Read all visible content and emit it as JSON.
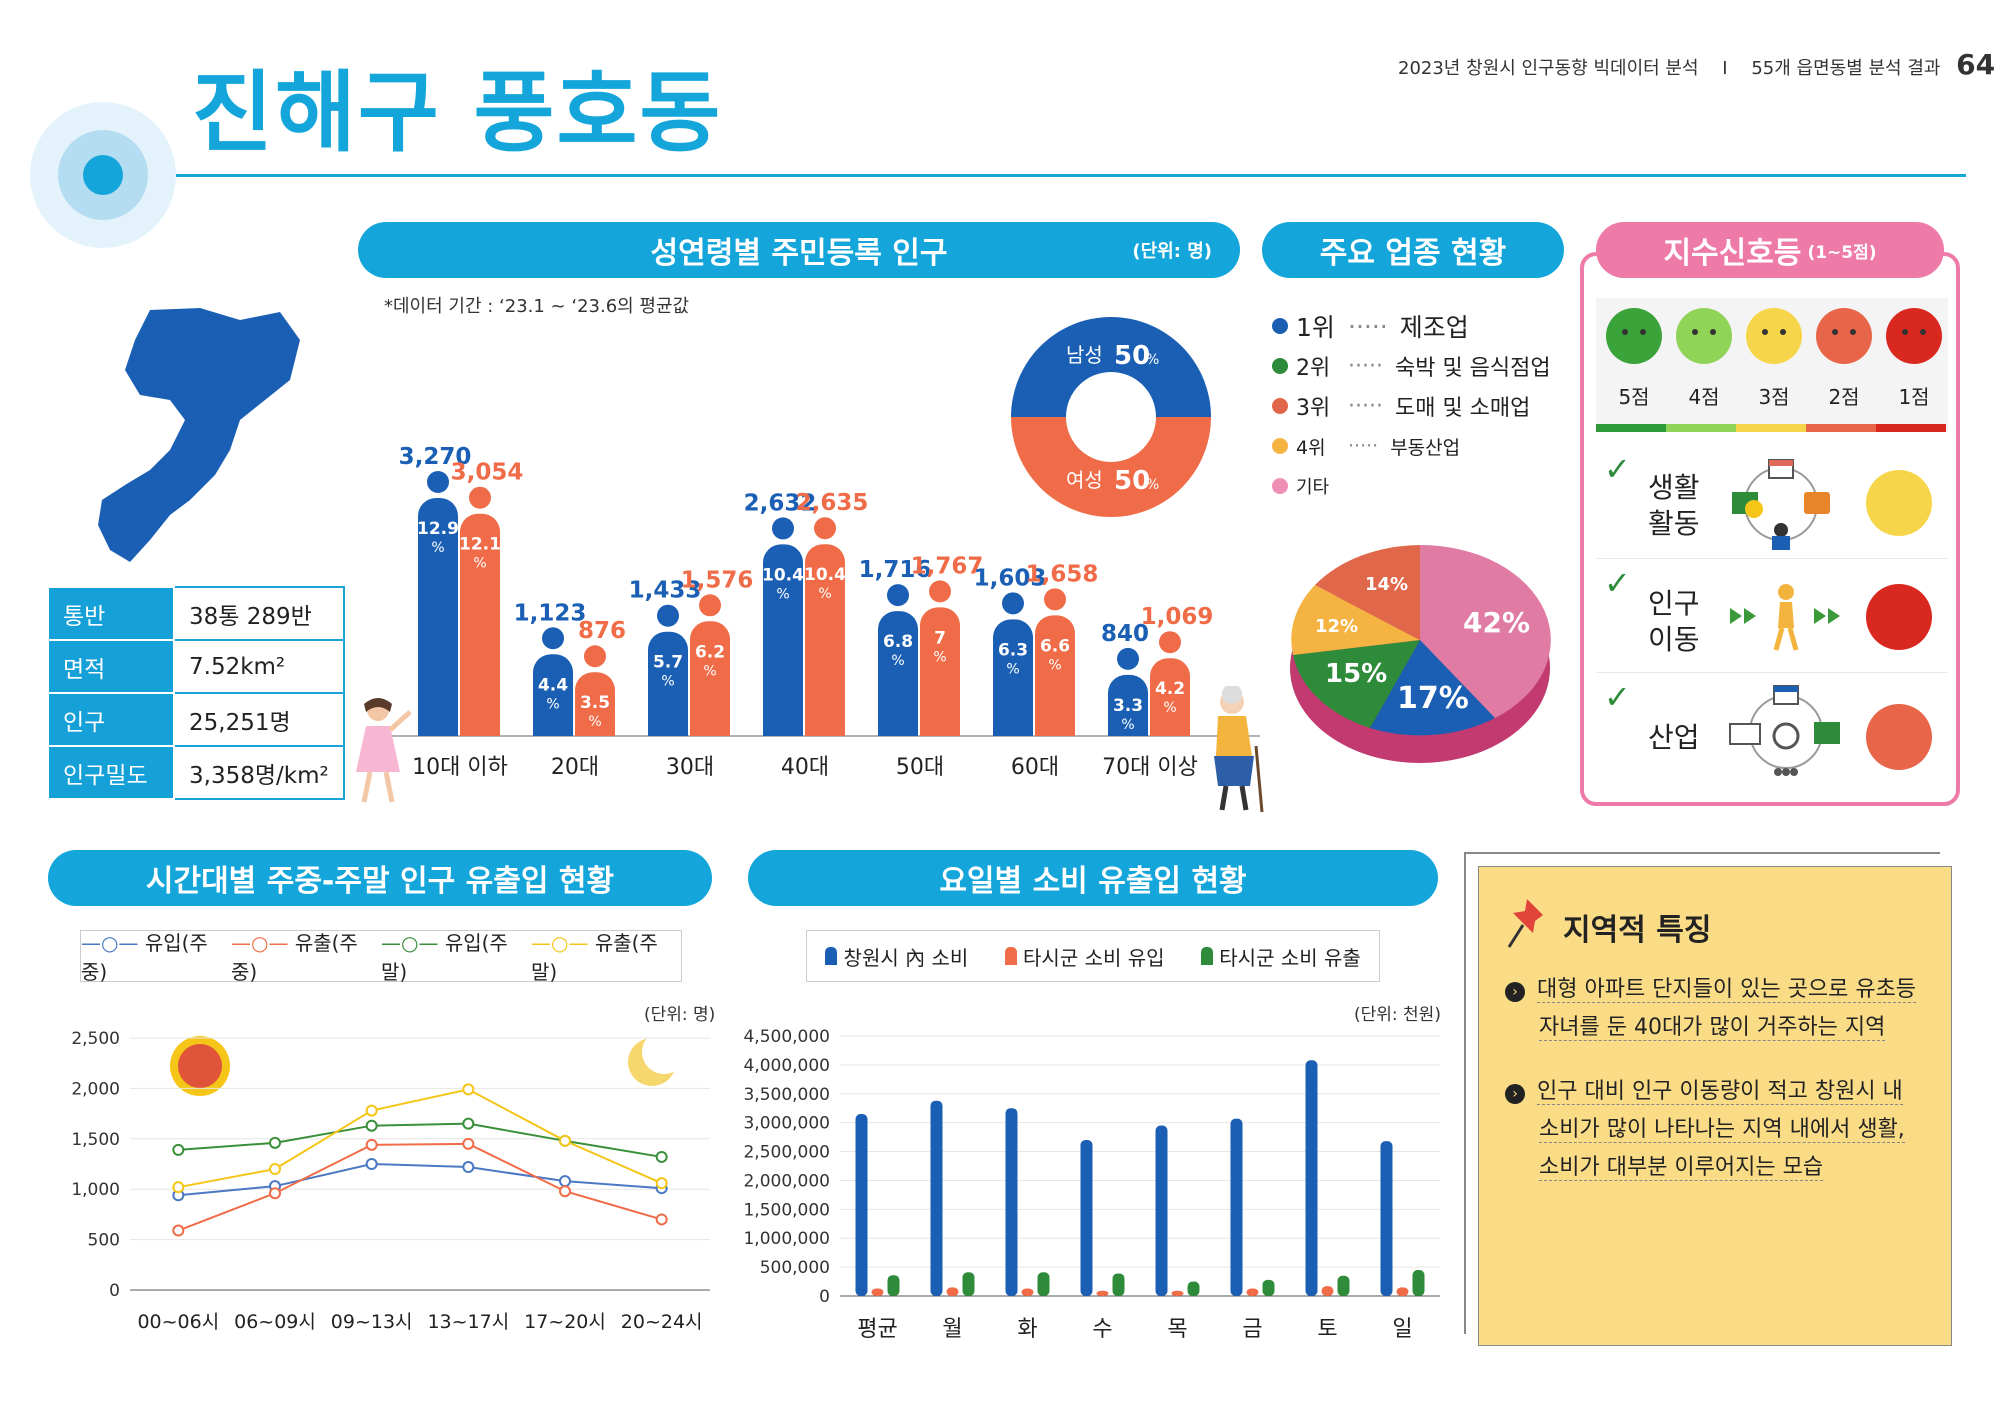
{
  "header": {
    "title": "진해구 풍호동",
    "report": "2023년 창원시 인구동향 빅데이터 분석",
    "separator": "I",
    "section": "55개 읍면동별 분석 결과",
    "page_number": "64"
  },
  "colors": {
    "accent": "#14a6da",
    "male": "#1a5fb4",
    "female": "#f06b47",
    "green": "#2e8b3a",
    "yellow": "#f5c518"
  },
  "info_table": [
    {
      "label": "통반",
      "value": "38통 289반"
    },
    {
      "label": "면적",
      "value": "7.52km²"
    },
    {
      "label": "인구",
      "value": "25,251명"
    },
    {
      "label": "인구밀도",
      "value": "3,358명/km²"
    }
  ],
  "pop_section": {
    "title": "성연령별 주민등록 인구",
    "unit": "(단위: 명)",
    "note": "*데이터 기간 : ‘23.1 ~ ‘23.6의 평균값"
  },
  "gender_donut": {
    "male_label": "남성",
    "male_value": "50",
    "female_label": "여성",
    "female_value": "50",
    "pct": "%"
  },
  "industry": {
    "title": "주요 업종 현황",
    "items": [
      {
        "rank": "1위",
        "name": "제조업",
        "color": "#1a5fb4"
      },
      {
        "rank": "2위",
        "name": "숙박 및 음식점업",
        "color": "#2e8b3a"
      },
      {
        "rank": "3위",
        "name": "도매 및 소매업",
        "color": "#e0674a"
      },
      {
        "rank": "4위",
        "name": "부동산업",
        "color": "#f5b342"
      },
      {
        "rank": "기타",
        "name": "",
        "color": "#ee8fb5"
      }
    ],
    "pie_labels": [
      "42%",
      "17%",
      "15%",
      "12%",
      "14%"
    ]
  },
  "signal": {
    "title": "지수신호등",
    "subtitle": "(1~5점)",
    "scores": [
      "5점",
      "4점",
      "3점",
      "2점",
      "1점"
    ],
    "rows": [
      {
        "label1": "생활",
        "label2": "활동",
        "score": 3
      },
      {
        "label1": "인구",
        "label2": "이동",
        "score": 1
      },
      {
        "label1": "",
        "label2": "산업",
        "score": 2
      }
    ]
  },
  "flow_section": {
    "title": "시간대별 주중-주말 인구 유출입 현황",
    "unit": "(단위: 명)",
    "legend": [
      "유입(주중)",
      "유출(주중)",
      "유입(주말)",
      "유출(주말)"
    ]
  },
  "consume_section": {
    "title": "요일별 소비 유출입 현황",
    "unit": "(단위: 천원)",
    "legend": [
      "창원시 內 소비",
      "타시군 소비 유입",
      "타시군 소비 유출"
    ]
  },
  "feature": {
    "title": "지역적 특징",
    "items": [
      [
        "대형 아파트 단지들이 있는 곳으로 유초등",
        "자녀를 둔 40대가 많이 거주하는 지역"
      ],
      [
        "인구 대비 인구 이동량이 적고 창원시 내",
        "소비가 많이 나타나는 지역 내에서 생활,",
        "소비가 대부분 이루어지는 모습"
      ]
    ]
  },
  "chart_data": [
    {
      "type": "bar",
      "title": "성연령별 주민등록 인구",
      "categories": [
        "10대 이하",
        "20대",
        "30대",
        "40대",
        "50대",
        "60대",
        "70대 이상"
      ],
      "series": [
        {
          "name": "남성",
          "values": [
            3270,
            1123,
            1433,
            2632,
            1716,
            1603,
            840
          ],
          "pct": [
            "12.9",
            "4.4",
            "5.7",
            "10.4",
            "6.8",
            "6.3",
            "3.3"
          ]
        },
        {
          "name": "여성",
          "values": [
            3054,
            876,
            1576,
            2635,
            1767,
            1658,
            1069
          ],
          "pct": [
            "12.1",
            "3.5",
            "6.2",
            "10.4",
            "7",
            "6.6",
            "4.2"
          ]
        }
      ],
      "labels": [
        [
          "3,270",
          "3,054"
        ],
        [
          "1,123",
          "876"
        ],
        [
          "1,433",
          "1,576"
        ],
        [
          "2,632",
          "2,635"
        ],
        [
          "1,716",
          "1,767"
        ],
        [
          "1,603",
          "1,658"
        ],
        [
          "840",
          "1,069"
        ]
      ]
    },
    {
      "type": "pie",
      "title": "주요 업종 현황",
      "categories": [
        "제조업",
        "숙박 및 음식점업",
        "도매 및 소매업",
        "부동산업",
        "기타"
      ],
      "values": [
        17,
        15,
        14,
        12,
        42
      ]
    },
    {
      "type": "line",
      "title": "시간대별 주중-주말 인구 유출입 현황",
      "categories": [
        "00~06시",
        "06~09시",
        "09~13시",
        "13~17시",
        "17~20시",
        "20~24시"
      ],
      "ylim": [
        0,
        2500
      ],
      "yticks": [
        "0",
        "500",
        "1,000",
        "1,500",
        "2,000",
        "2,500"
      ],
      "series": [
        {
          "name": "유입(주중)",
          "values": [
            940,
            1030,
            1250,
            1220,
            1080,
            1010
          ],
          "color": "#4a78c2"
        },
        {
          "name": "유출(주중)",
          "values": [
            590,
            960,
            1440,
            1450,
            980,
            700
          ],
          "color": "#f06b47"
        },
        {
          "name": "유입(주말)",
          "values": [
            1390,
            1460,
            1630,
            1650,
            1480,
            1320
          ],
          "color": "#3a8f3a"
        },
        {
          "name": "유출(주말)",
          "values": [
            1020,
            1200,
            1780,
            1990,
            1480,
            1060
          ],
          "color": "#f5c518"
        }
      ]
    },
    {
      "type": "bar",
      "title": "요일별 소비 유출입 현황",
      "categories": [
        "평균",
        "월",
        "화",
        "수",
        "목",
        "금",
        "토",
        "일"
      ],
      "ylim": [
        0,
        4500000
      ],
      "yticks": [
        "0",
        "500,000",
        "1,000,000",
        "1,500,000",
        "2,000,000",
        "2,500,000",
        "3,000,000",
        "3,500,000",
        "4,000,000",
        "4,500,000"
      ],
      "series": [
        {
          "name": "창원시 內 소비",
          "values": [
            3150000,
            3380000,
            3250000,
            2700000,
            2950000,
            3070000,
            4080000,
            2680000
          ],
          "color": "#1a5fb4"
        },
        {
          "name": "타시군 소비 유입",
          "values": [
            130000,
            150000,
            130000,
            90000,
            90000,
            130000,
            170000,
            150000
          ],
          "color": "#f06b47"
        },
        {
          "name": "타시군 소비 유출",
          "values": [
            360000,
            410000,
            410000,
            390000,
            250000,
            280000,
            350000,
            450000
          ],
          "color": "#2e8b3a"
        }
      ]
    }
  ]
}
